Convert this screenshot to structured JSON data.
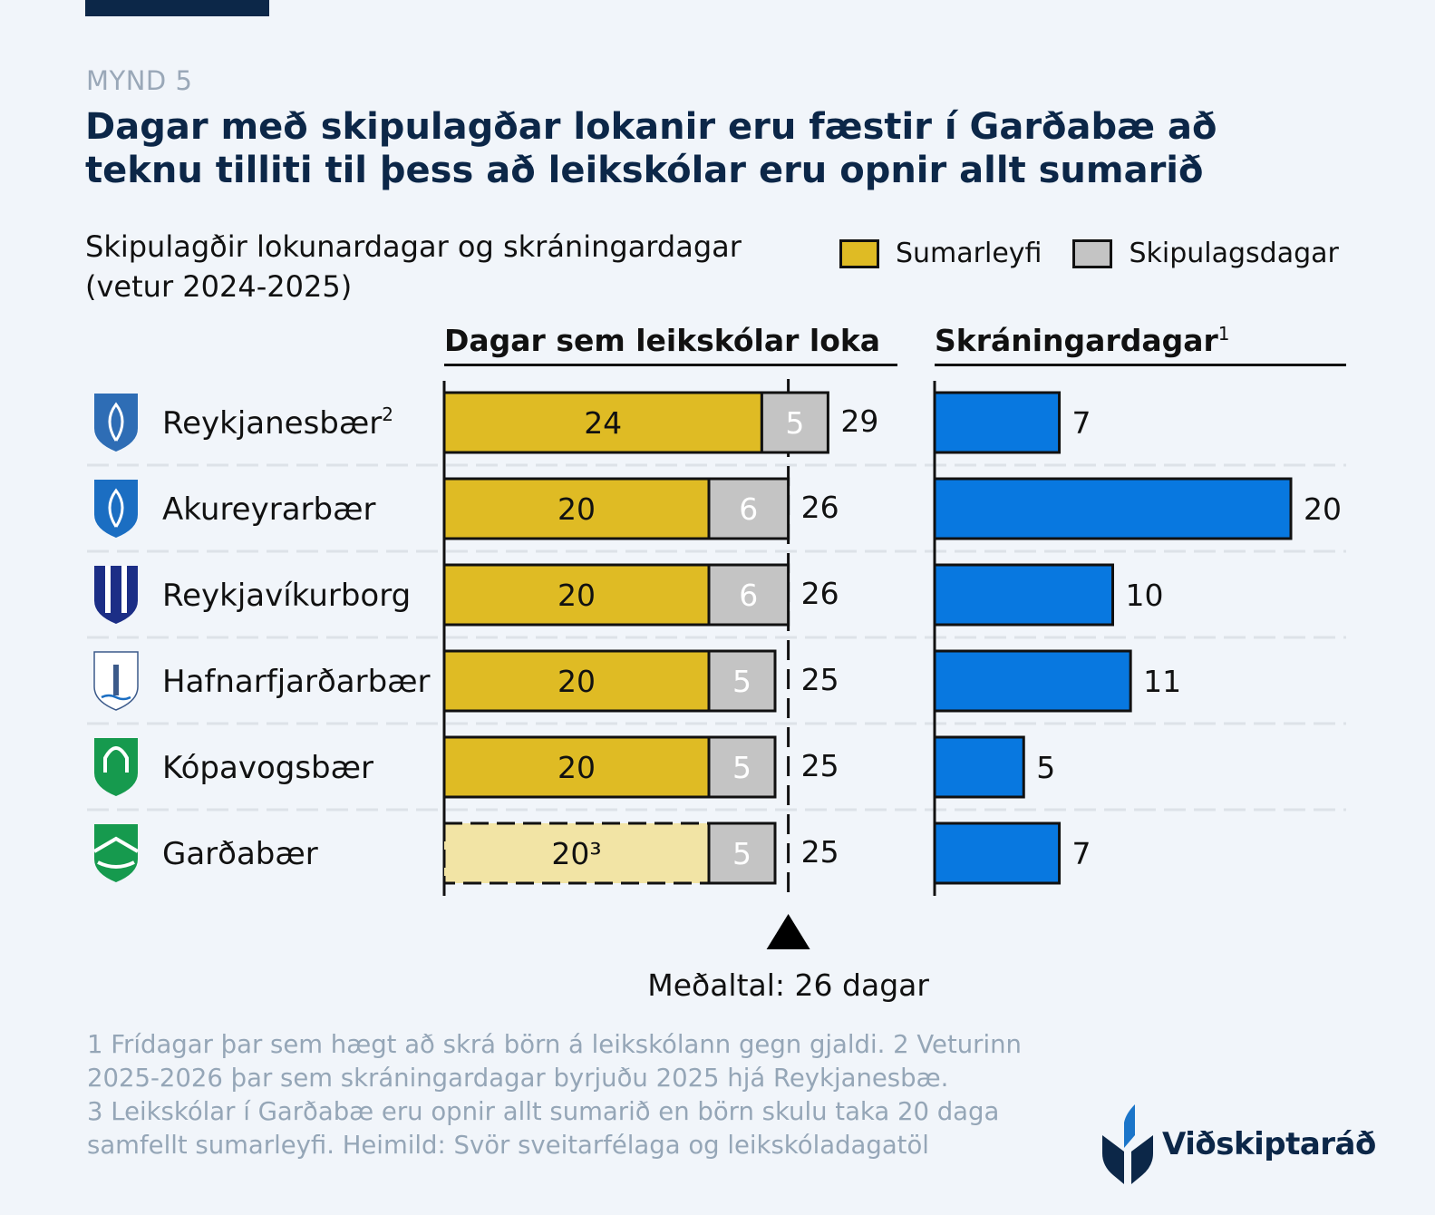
{
  "header": {
    "figure_label": "MYND 5",
    "title": "Dagar með skipulagðar lokanir eru fæstir í Garðabæ að teknu tilliti til þess að leikskólar eru opnir allt sumarið",
    "subtitle_line1": "Skipulagðir lokunardagar og skráningardagar",
    "subtitle_line2": "(vetur 2024-2025)"
  },
  "legend": {
    "items": [
      {
        "label": "Sumarleyfi",
        "color": "#dfbb24"
      },
      {
        "label": "Skipulagsdagar",
        "color": "#c4c4c4"
      }
    ]
  },
  "columns": {
    "left_title": "Dagar sem leikskólar loka",
    "right_title": "Skráningardagar",
    "right_title_sup": "1"
  },
  "average": {
    "label": "Meðaltal: 26 dagar",
    "value": 26
  },
  "colors": {
    "summer": "#dfbb24",
    "summer_open": "#f2e4a5",
    "planning": "#c4c4c4",
    "registration": "#0878e0",
    "title": "#0c2748"
  },
  "chart_data": [
    {
      "type": "bar",
      "orientation": "horizontal",
      "stacked": true,
      "title": "Dagar sem leikskólar loka",
      "categories": [
        "Reykjanesbær²",
        "Akureyrarbær",
        "Reykjavíkurborg",
        "Hafnarfjarðarbær",
        "Kópavogsbær",
        "Garðabær"
      ],
      "series": [
        {
          "name": "Sumarleyfi",
          "values": [
            24,
            20,
            20,
            20,
            20,
            20
          ],
          "labels": [
            "24",
            "20",
            "20",
            "20",
            "20",
            "20³"
          ]
        },
        {
          "name": "Skipulagsdagar",
          "values": [
            5,
            6,
            6,
            5,
            5,
            5
          ]
        }
      ],
      "totals": [
        29,
        26,
        26,
        25,
        25,
        25
      ],
      "dashed_last_summer": true,
      "reference_line": {
        "value": 26,
        "label": "Meðaltal: 26 dagar"
      },
      "xlim": [
        0,
        30
      ]
    },
    {
      "type": "bar",
      "orientation": "horizontal",
      "title": "Skráningardagar¹",
      "categories": [
        "Reykjanesbær²",
        "Akureyrarbær",
        "Reykjavíkurborg",
        "Hafnarfjarðarbær",
        "Kópavogsbær",
        "Garðabær"
      ],
      "values": [
        7,
        20,
        10,
        11,
        5,
        7
      ],
      "xlim": [
        0,
        23
      ]
    }
  ],
  "municipalities": [
    {
      "name": "Reykjanesbær",
      "sup": "2",
      "icon": "reykjanesbaer-crest-icon"
    },
    {
      "name": "Akureyrarbær",
      "sup": "",
      "icon": "akureyrarbaer-crest-icon"
    },
    {
      "name": "Reykjavíkurborg",
      "sup": "",
      "icon": "reykjavikurborg-crest-icon"
    },
    {
      "name": "Hafnarfjarðarbær",
      "sup": "",
      "icon": "hafnarfjardarbaer-crest-icon"
    },
    {
      "name": "Kópavogsbær",
      "sup": "",
      "icon": "kopavogsbaer-crest-icon"
    },
    {
      "name": "Garðabær",
      "sup": "",
      "icon": "gardabaer-crest-icon"
    }
  ],
  "footnote": "1 Frídagar þar sem hægt að skrá börn á leikskólann gegn gjaldi. 2 Veturinn 2025-2026 þar sem skráningardagar byrjuðu 2025 hjá Reykjanesbæ. 3 Leikskólar í Garðabæ eru opnir allt sumarið en börn skulu taka 20 daga samfellt sumarleyfi. Heimild: Svör sveitarfélaga og leikskóladagatöl",
  "footnote_lines": [
    "1 Frídagar þar sem hægt að skrá börn á leikskólann gegn gjaldi. 2 Veturinn",
    "2025-2026 þar sem skráningardagar byrjuðu 2025 hjá Reykjanesbæ.",
    "3 Leikskólar í Garðabæ eru opnir allt sumarið en börn skulu taka 20 daga",
    "samfellt sumarleyfi. Heimild: Svör sveitarfélaga og leikskóladagatöl"
  ],
  "brand": {
    "name": "Viðskiptaráð"
  }
}
